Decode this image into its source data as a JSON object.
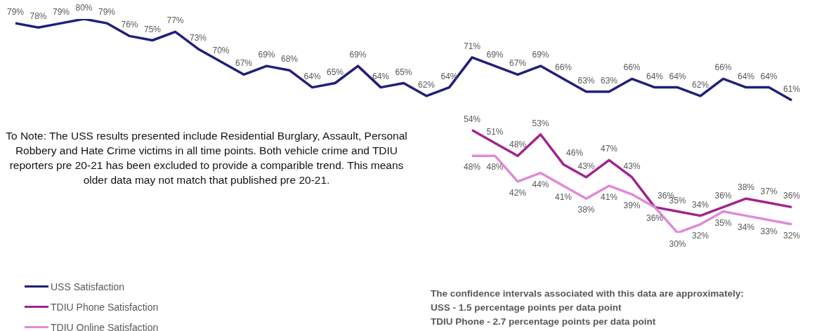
{
  "chart_data": {
    "type": "line",
    "categories": [
      null,
      null,
      null,
      null,
      null,
      null,
      null,
      null,
      null,
      null,
      null,
      null,
      null,
      null,
      null,
      null,
      null,
      null,
      null,
      null,
      null,
      null,
      null,
      null,
      null,
      null,
      null,
      null,
      null,
      null,
      null,
      null,
      null,
      null,
      null
    ],
    "series": [
      {
        "name": "USS Satisfaction",
        "color": "#1f1f7a",
        "values": [
          79,
          78,
          79,
          80,
          79,
          76,
          75,
          77,
          73,
          70,
          67,
          69,
          68,
          64,
          65,
          69,
          64,
          65,
          62,
          64,
          71,
          69,
          67,
          69,
          66,
          63,
          63,
          66,
          64,
          64,
          62,
          66,
          64,
          64,
          61
        ],
        "value_labels": [
          "79%",
          "78%",
          "79%",
          "80%",
          "79%",
          "76%",
          "75%",
          "77%",
          "73%",
          "70%",
          "67%",
          "69%",
          "68%",
          "64%",
          "65%",
          "69%",
          "64%",
          "65%",
          "62%",
          "64%",
          "71%",
          "69%",
          "67%",
          "69%",
          "66%",
          "63%",
          "63%",
          "66%",
          "64%",
          "64%",
          "62%",
          "66%",
          "64%",
          "64%",
          "61%"
        ]
      },
      {
        "name": "TDIU Phone Satisfaction",
        "color": "#a0248e",
        "values": [
          null,
          null,
          null,
          null,
          null,
          null,
          null,
          null,
          null,
          null,
          null,
          null,
          null,
          null,
          null,
          null,
          null,
          null,
          null,
          null,
          54,
          51,
          48,
          53,
          46,
          43,
          47,
          43,
          36,
          35,
          34,
          36,
          38,
          37,
          36
        ],
        "value_labels": [
          null,
          null,
          null,
          null,
          null,
          null,
          null,
          null,
          null,
          null,
          null,
          null,
          null,
          null,
          null,
          null,
          null,
          null,
          null,
          null,
          "54%",
          "51%",
          "48%",
          "53%",
          "46%",
          "43%",
          "47%",
          "43%",
          "36%",
          "35%",
          "34%",
          "36%",
          "38%",
          "37%",
          "36%"
        ]
      },
      {
        "name": "TDIU Online Satisfaction",
        "color": "#e08ad8",
        "values": [
          null,
          null,
          null,
          null,
          null,
          null,
          null,
          null,
          null,
          null,
          null,
          null,
          null,
          null,
          null,
          null,
          null,
          null,
          null,
          null,
          48,
          48,
          42,
          44,
          41,
          38,
          41,
          39,
          36,
          30,
          32,
          35,
          34,
          33,
          32
        ],
        "value_labels": [
          null,
          null,
          null,
          null,
          null,
          null,
          null,
          null,
          null,
          null,
          null,
          null,
          null,
          null,
          null,
          null,
          null,
          null,
          null,
          null,
          "48%",
          "48%",
          "42%",
          "44%",
          "41%",
          "38%",
          "41%",
          "39%",
          "36%",
          "30%",
          "32%",
          "35%",
          "34%",
          "33%",
          "32%"
        ]
      }
    ],
    "legend": "bottom left",
    "annotations": [
      "To Note: The USS results presented include Residential Burglary, Assault, Personal Robbery and Hate Crime victims in all time points. Both vehicle crime and TDIU reporters pre 20-21 has been excluded to provide a comparible trend. This means older data may not match that published pre 20-21.",
      "The confidence intervals associated with this data are approximately:",
      "USS - 1.5 percentage points per data point",
      "TDIU Phone - 2.7 percentage points per data point"
    ]
  }
}
